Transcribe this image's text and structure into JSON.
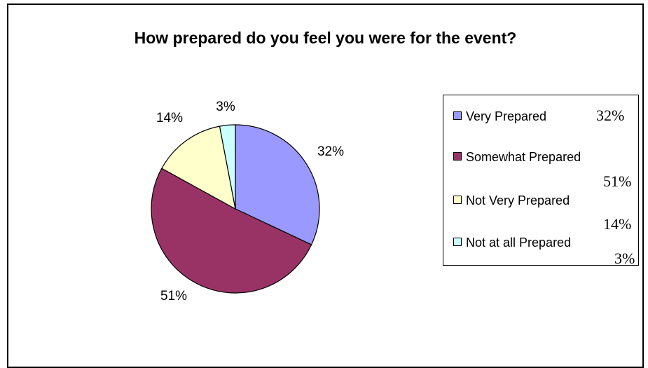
{
  "chart_data": {
    "type": "pie",
    "title": "How prepared do you feel you were for the event?",
    "slices": [
      {
        "label": "Very Prepared",
        "value": 32,
        "value_label": "32%",
        "legend_pct": "32%",
        "color": "#9999ff"
      },
      {
        "label": "Somewhat Prepared",
        "value": 51,
        "value_label": "51%",
        "legend_pct": "51%",
        "color": "#993366"
      },
      {
        "label": "Not Very Prepared",
        "value": 14,
        "value_label": "14%",
        "legend_pct": "14%",
        "color": "#ffffcc"
      },
      {
        "label": "Not at all Prepared",
        "value": 3,
        "value_label": "3%",
        "legend_pct": "3%",
        "color": "#ccffff"
      }
    ],
    "legend_placement": "right"
  }
}
